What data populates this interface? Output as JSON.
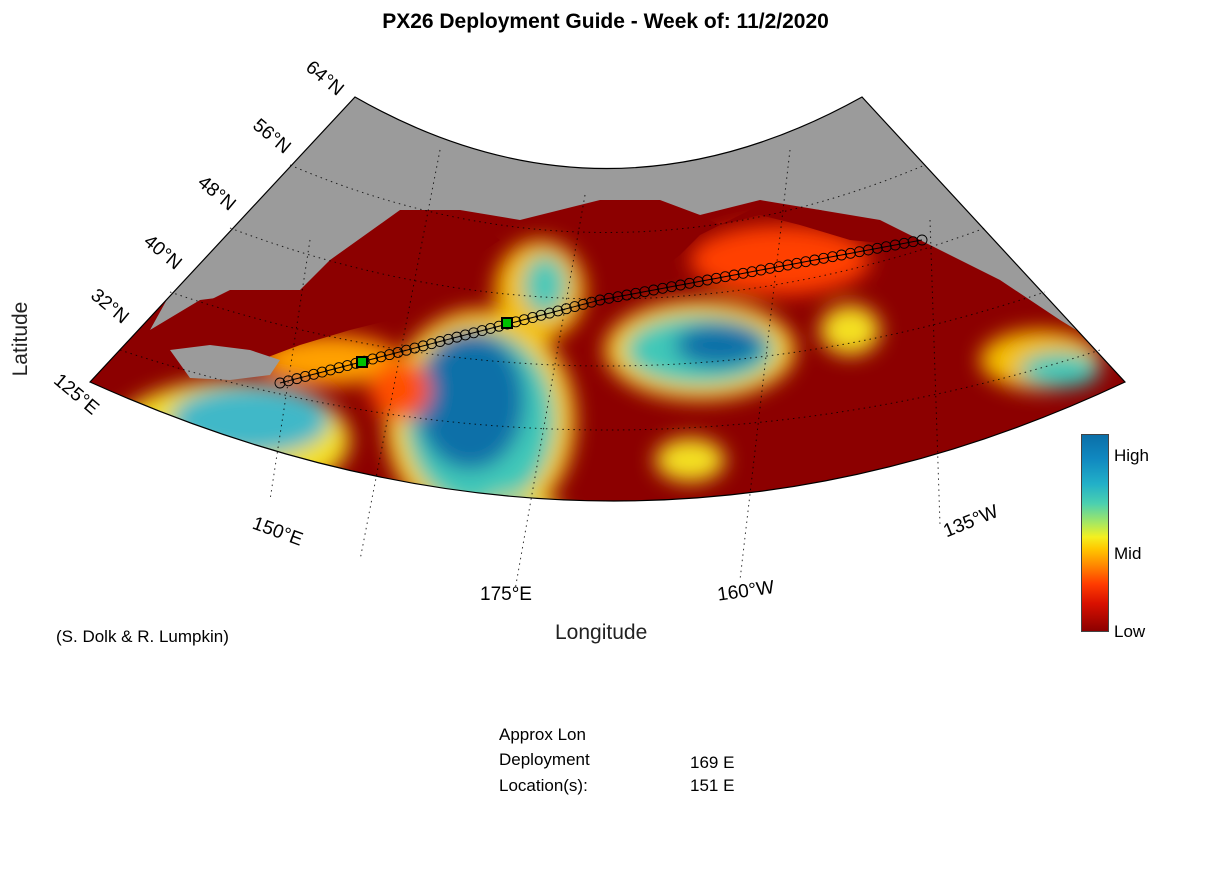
{
  "title": "PX26 Deployment Guide - Week of: 11/2/2020",
  "axes": {
    "xlabel": "Longitude",
    "ylabel": "Latitude",
    "lat_ticks": [
      "64°N",
      "56°N",
      "48°N",
      "40°N",
      "32°N"
    ],
    "lon_ticks": [
      "125°E",
      "150°E",
      "175°E",
      "160°W",
      "135°W"
    ]
  },
  "credit": "(S. Dolk & R. Lumpkin)",
  "colorbar": {
    "high": "High",
    "mid": "Mid",
    "low": "Low"
  },
  "deployment": {
    "header": "Approx Lon",
    "line1_label": "Deployment",
    "line1_value": "169 E",
    "line2_label": "Location(s):",
    "line2_value": "151 E"
  },
  "colors": {
    "land": "#9b9b9b",
    "low": "#8c0000",
    "high": "#0b6fa8"
  }
}
